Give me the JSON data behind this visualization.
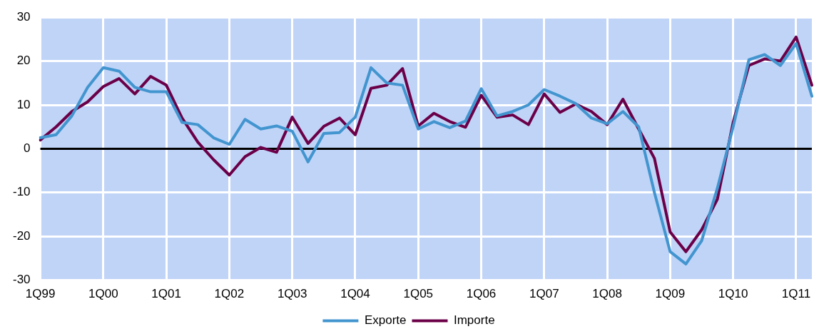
{
  "chart_data": {
    "type": "line",
    "categories": [
      "1Q99",
      null,
      null,
      null,
      "1Q00",
      null,
      null,
      null,
      "1Q01",
      null,
      null,
      null,
      "1Q02",
      null,
      null,
      null,
      "1Q03",
      null,
      null,
      null,
      "1Q04",
      null,
      null,
      null,
      "1Q05",
      null,
      null,
      null,
      "1Q06",
      null,
      null,
      null,
      "1Q07",
      null,
      null,
      null,
      "1Q08",
      null,
      null,
      null,
      "1Q09",
      null,
      null,
      null,
      "1Q10",
      null,
      null,
      null,
      "1Q11",
      null
    ],
    "series": [
      {
        "name": "Exporte",
        "color": "#4295cf",
        "values": [
          2.5,
          3.2,
          7.5,
          14,
          18.5,
          17.7,
          14,
          13,
          13,
          6,
          5.5,
          2.5,
          1,
          6.7,
          4.5,
          5.2,
          4,
          -3,
          3.5,
          3.7,
          7.2,
          18.5,
          15,
          14.5,
          4.5,
          6.2,
          4.8,
          6.3,
          13.7,
          7.5,
          8.5,
          10,
          13.5,
          12,
          10.3,
          7,
          5.7,
          8.5,
          5,
          -10,
          -23.5,
          -26.3,
          -21,
          -9,
          5,
          20.3,
          21.5,
          19,
          24,
          12
        ]
      },
      {
        "name": "Importe",
        "color": "#6b0048",
        "values": [
          2,
          5,
          8.5,
          10.7,
          14.2,
          16,
          12.5,
          16.5,
          14.5,
          7,
          1.5,
          -2.5,
          -6,
          -1.8,
          0.3,
          -0.8,
          7.2,
          1.2,
          5.1,
          7,
          3.2,
          13.8,
          14.5,
          18.3,
          5.2,
          8.1,
          6.2,
          4.9,
          12.2,
          7.2,
          7.7,
          5.5,
          12.5,
          8.3,
          10.2,
          8.5,
          5.5,
          11.3,
          4.5,
          -2.2,
          -19,
          -23.5,
          -18.5,
          -11.5,
          6,
          19,
          20.5,
          20,
          25.5,
          14.5
        ]
      }
    ],
    "ylim": [
      -30,
      30
    ],
    "yticks": [
      -30,
      -20,
      -10,
      0,
      10,
      20,
      30
    ],
    "grid": true,
    "legend": "bottom",
    "marker": "none",
    "line_style": "solid",
    "ref_lines": [
      {
        "axis": "y",
        "value": 0,
        "color": "#000000"
      }
    ]
  }
}
